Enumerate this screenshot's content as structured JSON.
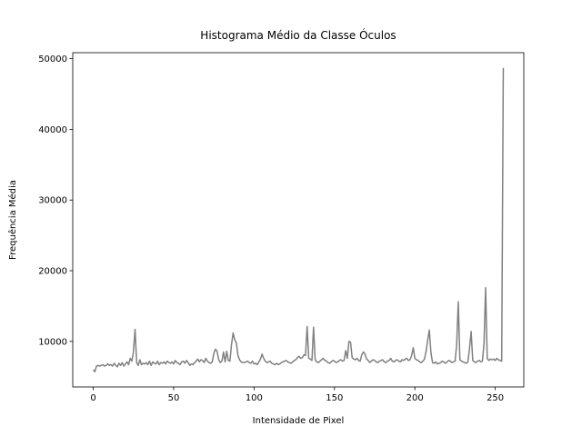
{
  "chart_data": {
    "type": "line",
    "title": "Histograma Médio da Classe Óculos",
    "x_label": "Intensidade de Pixel",
    "y_label": "Frequência Média",
    "xlim": [
      -12.75,
      267.75
    ],
    "ylim": [
      3550,
      50850
    ],
    "xticks": [
      0,
      50,
      100,
      150,
      200,
      250
    ],
    "yticks": [
      10000,
      20000,
      30000,
      40000,
      50000
    ],
    "x": [
      0,
      1,
      2,
      3,
      4,
      5,
      6,
      7,
      8,
      9,
      10,
      11,
      12,
      13,
      14,
      15,
      16,
      17,
      18,
      19,
      20,
      21,
      22,
      23,
      24,
      25,
      26,
      27,
      28,
      29,
      30,
      31,
      32,
      33,
      34,
      35,
      36,
      37,
      38,
      39,
      40,
      41,
      42,
      43,
      44,
      45,
      46,
      47,
      48,
      49,
      50,
      51,
      52,
      53,
      54,
      55,
      56,
      57,
      58,
      59,
      60,
      61,
      62,
      63,
      64,
      65,
      66,
      67,
      68,
      69,
      70,
      71,
      72,
      73,
      74,
      75,
      76,
      77,
      78,
      79,
      80,
      81,
      82,
      83,
      84,
      85,
      86,
      87,
      88,
      89,
      90,
      91,
      92,
      93,
      94,
      95,
      96,
      97,
      98,
      99,
      100,
      101,
      102,
      103,
      104,
      105,
      106,
      107,
      108,
      109,
      110,
      111,
      112,
      113,
      114,
      115,
      116,
      117,
      118,
      119,
      120,
      121,
      122,
      123,
      124,
      125,
      126,
      127,
      128,
      129,
      130,
      131,
      132,
      133,
      134,
      135,
      136,
      137,
      138,
      139,
      140,
      141,
      142,
      143,
      144,
      145,
      146,
      147,
      148,
      149,
      150,
      151,
      152,
      153,
      154,
      155,
      156,
      157,
      158,
      159,
      160,
      161,
      162,
      163,
      164,
      165,
      166,
      167,
      168,
      169,
      170,
      171,
      172,
      173,
      174,
      175,
      176,
      177,
      178,
      179,
      180,
      181,
      182,
      183,
      184,
      185,
      186,
      187,
      188,
      189,
      190,
      191,
      192,
      193,
      194,
      195,
      196,
      197,
      198,
      199,
      200,
      201,
      202,
      203,
      204,
      205,
      206,
      207,
      208,
      209,
      210,
      211,
      212,
      213,
      214,
      215,
      216,
      217,
      218,
      219,
      220,
      221,
      222,
      223,
      224,
      225,
      226,
      227,
      228,
      229,
      230,
      231,
      232,
      233,
      234,
      235,
      236,
      237,
      238,
      239,
      240,
      241,
      242,
      243,
      244,
      245,
      246,
      247,
      248,
      249,
      250,
      251,
      252,
      253,
      254,
      255
    ],
    "series": [
      {
        "color": "#808080",
        "values": [
          6000,
          5700,
          6500,
          6600,
          6500,
          6600,
          6700,
          6500,
          6600,
          6800,
          6600,
          6700,
          6500,
          6900,
          6600,
          6400,
          6900,
          6600,
          7000,
          6500,
          6800,
          7100,
          6700,
          7600,
          7200,
          8500,
          11700,
          7000,
          6600,
          7400,
          6700,
          6900,
          6800,
          7000,
          6700,
          7200,
          6600,
          7100,
          6900,
          6800,
          7200,
          6700,
          7000,
          6900,
          7100,
          6800,
          7200,
          7000,
          6900,
          7100,
          6800,
          7300,
          7000,
          6900,
          6700,
          7100,
          7200,
          6900,
          7300,
          7000,
          6600,
          6800,
          6700,
          7000,
          7200,
          7500,
          7100,
          7400,
          7300,
          7000,
          7600,
          7200,
          7000,
          6900,
          7100,
          8300,
          8900,
          8600,
          7400,
          7000,
          7200,
          8500,
          7100,
          8600,
          7300,
          7200,
          9600,
          11200,
          10200,
          9800,
          8000,
          7400,
          7100,
          7000,
          7000,
          7100,
          7200,
          7000,
          6900,
          7200,
          6800,
          6900,
          6700,
          7100,
          7500,
          8200,
          7600,
          7200,
          7000,
          7100,
          7200,
          6900,
          6800,
          6700,
          6900,
          6700,
          6800,
          7000,
          7100,
          7200,
          7300,
          7100,
          7000,
          6900,
          7100,
          7300,
          7400,
          7700,
          7900,
          7600,
          7700,
          8100,
          8000,
          12100,
          7600,
          7500,
          7300,
          12000,
          7400,
          7100,
          7000,
          7200,
          7400,
          7600,
          7300,
          7200,
          7000,
          6900,
          7100,
          7300,
          7200,
          7000,
          7100,
          7300,
          7400,
          7200,
          7300,
          8700,
          7600,
          10000,
          9900,
          7700,
          7500,
          7400,
          7600,
          7300,
          7200,
          8100,
          8500,
          8200,
          7500,
          7300,
          7000,
          7200,
          7400,
          7300,
          7100,
          7000,
          7200,
          7300,
          7400,
          7100,
          7000,
          7200,
          7300,
          7600,
          7200,
          7100,
          7300,
          7400,
          7200,
          7100,
          7400,
          7300,
          7500,
          7600,
          7300,
          7400,
          8000,
          9100,
          7600,
          7400,
          7300,
          7100,
          7000,
          7200,
          7500,
          8600,
          10200,
          11600,
          8400,
          7000,
          6900,
          7100,
          6800,
          6900,
          7000,
          7200,
          7100,
          6900,
          7100,
          7300,
          7200,
          7000,
          7100,
          7200,
          9500,
          15600,
          7400,
          7200,
          7100,
          7000,
          6900,
          7100,
          9000,
          11400,
          7300,
          7100,
          7000,
          7200,
          7300,
          7100,
          7200,
          9600,
          17600,
          7600,
          7300,
          7500,
          7400,
          7500,
          7300,
          7600,
          7400,
          7300,
          7200,
          48700
        ]
      }
    ]
  }
}
